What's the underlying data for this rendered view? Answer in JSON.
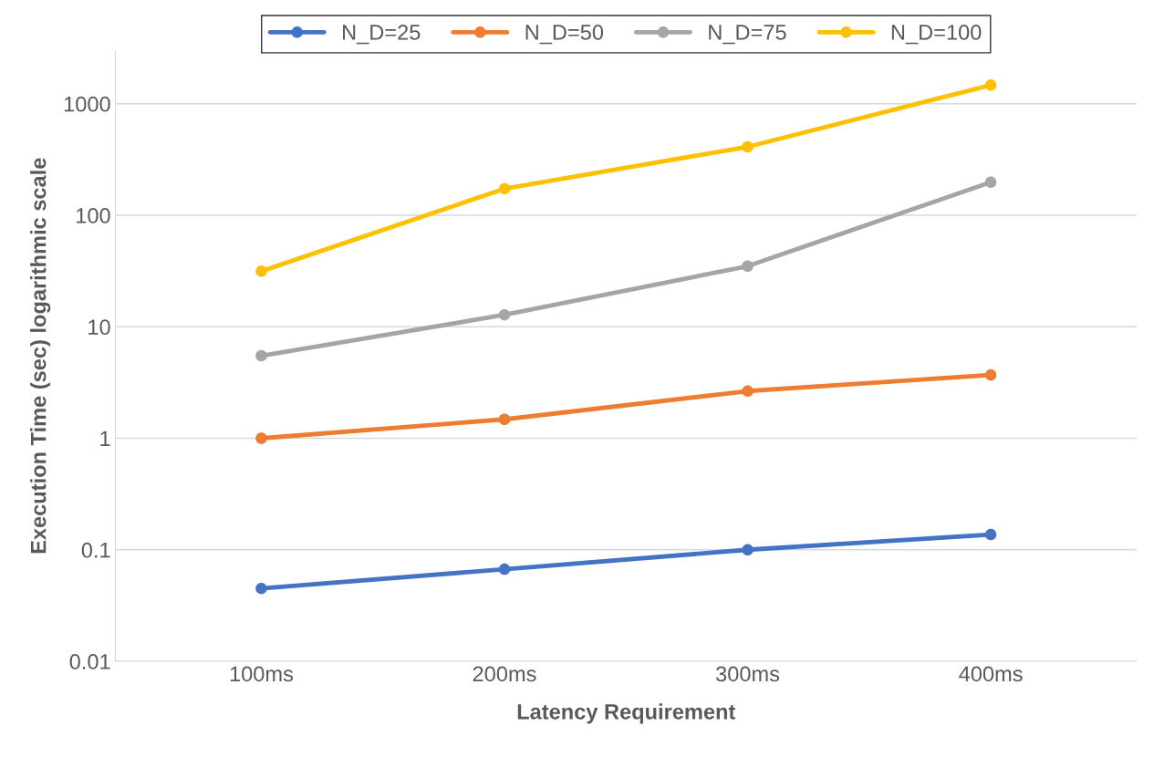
{
  "chart_data": {
    "type": "line",
    "xlabel": "Latency Requirement",
    "ylabel": "Execution Time (sec) logarithmic scale",
    "categories": [
      "100ms",
      "200ms",
      "300ms",
      "400ms"
    ],
    "series": [
      {
        "name": "N_D=25",
        "color": "#4472c4",
        "values": [
          0.045,
          0.067,
          0.1,
          0.137
        ]
      },
      {
        "name": "N_D=50",
        "color": "#ed7d31",
        "values": [
          1,
          1.48,
          2.65,
          3.7
        ]
      },
      {
        "name": "N_D=75",
        "color": "#a5a5a5",
        "values": [
          5.5,
          12.8,
          35,
          198
        ]
      },
      {
        "name": "N_D=100",
        "color": "#ffc000",
        "values": [
          31.5,
          173,
          411,
          1470
        ]
      }
    ],
    "log": "y",
    "ylim": [
      0.01,
      3000
    ],
    "yticks": [
      0.01,
      0.1,
      1,
      10,
      100,
      1000
    ],
    "grid": "y",
    "legend": "top",
    "marker": "circle",
    "line_style": "solid"
  }
}
